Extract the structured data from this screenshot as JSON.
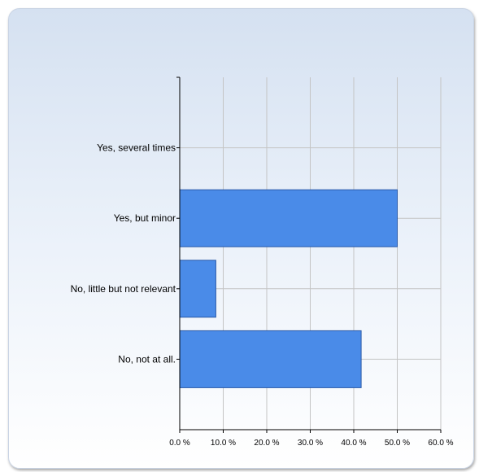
{
  "chart_data": {
    "type": "bar",
    "orientation": "horizontal",
    "categories": [
      "Yes, several times",
      "Yes, but minor",
      "No, little but not relevant",
      "No, not at all."
    ],
    "values": [
      0.0,
      50.0,
      8.3,
      41.7
    ],
    "x_ticks": [
      "0.0 %",
      "10.0 %",
      "20.0 %",
      "30.0 %",
      "40.0 %",
      "50.0 %",
      "60.0 %"
    ],
    "xlim": [
      0,
      60
    ],
    "grid": true,
    "bar_color": "#4a8be8",
    "bar_stroke": "#2a5aa8"
  }
}
